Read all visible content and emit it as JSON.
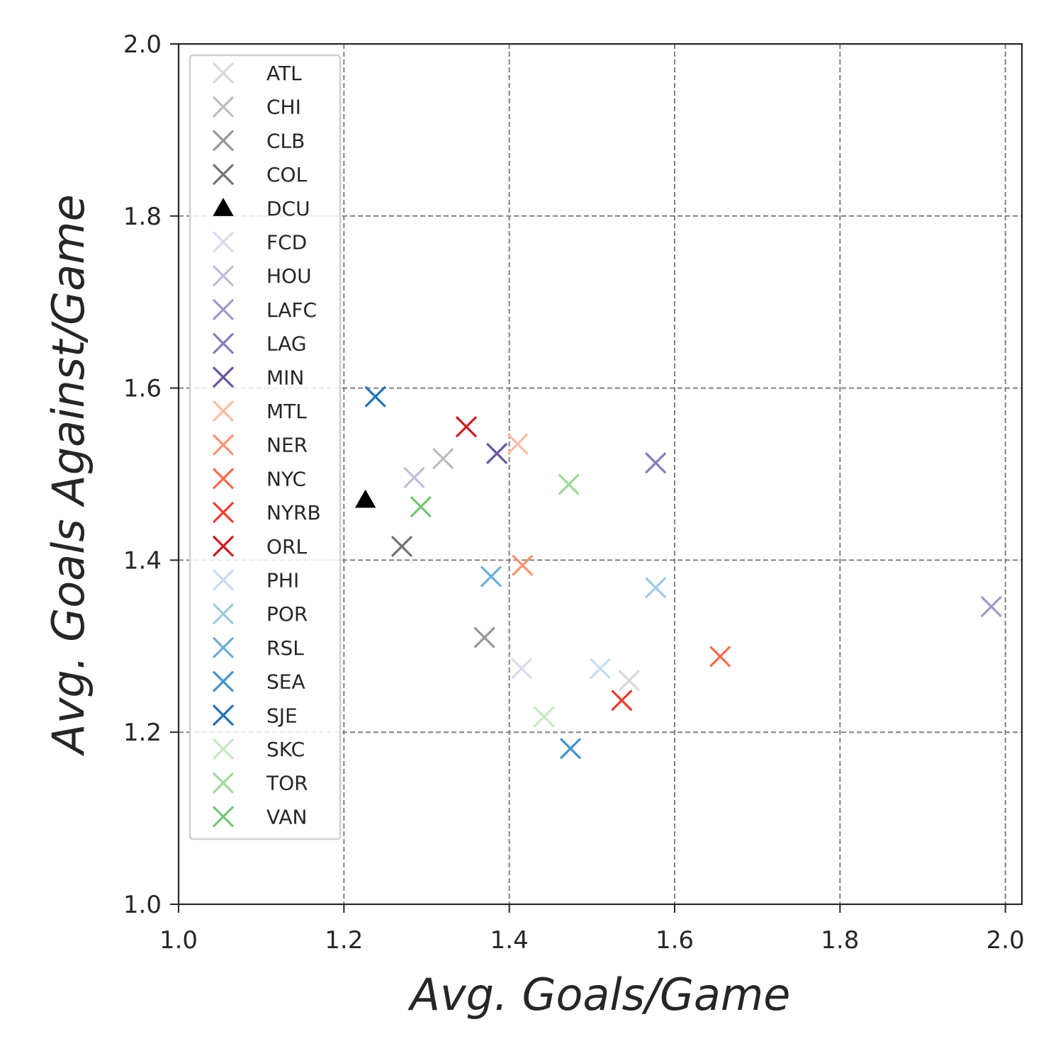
{
  "chart_data": {
    "type": "scatter",
    "title": "",
    "xlabel": "Avg.  Goals/Game",
    "ylabel": "Avg.  Goals Against/Game",
    "xlim": [
      1.0,
      2.02
    ],
    "ylim": [
      1.0,
      2.0
    ],
    "xticks": [
      "1.0",
      "1.2",
      "1.4",
      "1.6",
      "1.8",
      "2.0"
    ],
    "yticks": [
      "1.0",
      "1.2",
      "1.4",
      "1.6",
      "1.8",
      "2.0"
    ],
    "grid": true,
    "legend_position": "upper-left",
    "series": [
      {
        "name": "ATL",
        "marker": "x",
        "color": "#d9d9d9",
        "x": 1.545,
        "y": 1.26
      },
      {
        "name": "CHI",
        "marker": "x",
        "color": "#bdbdbd",
        "x": 1.32,
        "y": 1.518
      },
      {
        "name": "CLB",
        "marker": "x",
        "color": "#969696",
        "x": 1.37,
        "y": 1.31
      },
      {
        "name": "COL",
        "marker": "x",
        "color": "#737373",
        "x": 1.27,
        "y": 1.416
      },
      {
        "name": "DCU",
        "marker": "triangle",
        "color": "#000000",
        "x": 1.226,
        "y": 1.47
      },
      {
        "name": "FCD",
        "marker": "x",
        "color": "#dadaeb",
        "x": 1.415,
        "y": 1.274
      },
      {
        "name": "HOU",
        "marker": "x",
        "color": "#bcbddc",
        "x": 1.285,
        "y": 1.496
      },
      {
        "name": "LAFC",
        "marker": "x",
        "color": "#9e9ac8",
        "x": 1.983,
        "y": 1.346
      },
      {
        "name": "LAG",
        "marker": "x",
        "color": "#807dba",
        "x": 1.577,
        "y": 1.513
      },
      {
        "name": "MIN",
        "marker": "x",
        "color": "#6a51a3",
        "x": 1.385,
        "y": 1.524
      },
      {
        "name": "MTL",
        "marker": "x",
        "color": "#fcbba1",
        "x": 1.41,
        "y": 1.535
      },
      {
        "name": "NER",
        "marker": "x",
        "color": "#fc9272",
        "x": 1.416,
        "y": 1.394
      },
      {
        "name": "NYC",
        "marker": "x",
        "color": "#fb6a4a",
        "x": 1.655,
        "y": 1.288
      },
      {
        "name": "NYRB",
        "marker": "x",
        "color": "#ef3b2c",
        "x": 1.536,
        "y": 1.237
      },
      {
        "name": "ORL",
        "marker": "x",
        "color": "#cb181d",
        "x": 1.348,
        "y": 1.555
      },
      {
        "name": "PHI",
        "marker": "x",
        "color": "#c6dbef",
        "x": 1.51,
        "y": 1.274
      },
      {
        "name": "POR",
        "marker": "x",
        "color": "#9ecae1",
        "x": 1.577,
        "y": 1.368
      },
      {
        "name": "RSL",
        "marker": "x",
        "color": "#6baed6",
        "x": 1.378,
        "y": 1.381
      },
      {
        "name": "SEA",
        "marker": "x",
        "color": "#4292c6",
        "x": 1.474,
        "y": 1.181
      },
      {
        "name": "SJE",
        "marker": "x",
        "color": "#2171b5",
        "x": 1.238,
        "y": 1.59
      },
      {
        "name": "SKC",
        "marker": "x",
        "color": "#c7e9c0",
        "x": 1.442,
        "y": 1.218
      },
      {
        "name": "TOR",
        "marker": "x",
        "color": "#a1d99b",
        "x": 1.472,
        "y": 1.488
      },
      {
        "name": "VAN",
        "marker": "x",
        "color": "#74c476",
        "x": 1.293,
        "y": 1.462
      }
    ]
  }
}
